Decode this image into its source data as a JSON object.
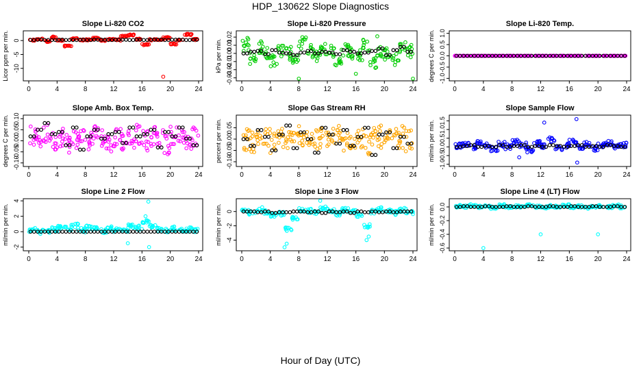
{
  "figure": {
    "title": "HDP_130622  Slope Diagnostics",
    "xlabel": "Hour of Day (UTC)"
  },
  "chart_data": [
    {
      "type": "scatter",
      "title": "Slope Li-820 CO2",
      "ylabel": "Licor ppm per min.",
      "xlim": [
        0,
        24
      ],
      "ylim": [
        -14,
        3
      ],
      "xticks": [
        0,
        4,
        8,
        12,
        16,
        20,
        24
      ],
      "yticks": [
        0,
        -5,
        -10
      ],
      "ytick_labels": [
        "0",
        "-5",
        "-10"
      ],
      "color": "#ff0000",
      "spread": 0.25,
      "series": [
        {
          "name": "all slopes",
          "color": "#ff0000",
          "values": [
            0.1,
            0.5,
            -0.3,
            1.2,
            0.0,
            -2.0,
            0.6,
            0.2,
            0.3,
            0.8,
            0.1,
            0.4,
            0.2,
            1.5,
            2.0,
            0.5,
            -1.5,
            0.3,
            0.4,
            1.0,
            -1.2,
            0.2,
            2.2,
            0.4
          ]
        },
        {
          "name": "hourly mean",
          "color": "#000000",
          "values": [
            0.2,
            0.3,
            0.2,
            0.2,
            0.3,
            0.2,
            0.2,
            0.3,
            0.2,
            0.3,
            0.3,
            0.2,
            0.3,
            0.3,
            0.2,
            0.3,
            0.2,
            0.3,
            0.3,
            0.2,
            0.3,
            0.3,
            0.2,
            0.3
          ]
        }
      ],
      "outliers": [
        {
          "x": 19.0,
          "y": -13.0
        },
        {
          "x": 23.0,
          "y": 2.3
        }
      ]
    },
    {
      "type": "scatter",
      "title": "Slope Li-820 Pressure",
      "ylabel": "kPa per min.",
      "xlim": [
        0,
        24
      ],
      "ylim": [
        -0.032,
        0.026
      ],
      "xticks": [
        0,
        4,
        8,
        12,
        16,
        20,
        24
      ],
      "yticks": [
        0.02,
        0.01,
        0.0,
        -0.01,
        -0.02,
        -0.03
      ],
      "ytick_labels": [
        "0.02",
        "0.01",
        "0.00",
        "-0.01",
        "-0.02",
        "-0.03"
      ],
      "color": "#00cc00",
      "spread": 0.008,
      "series": [
        {
          "name": "all slopes",
          "color": "#00cc00",
          "values": [
            0.01,
            -0.005,
            0.008,
            0.002,
            -0.01,
            0.004,
            0.0,
            -0.006,
            0.012,
            0.003,
            -0.004,
            0.006,
            0.002,
            -0.008,
            0.005,
            0.001,
            -0.003,
            0.01,
            -0.012,
            0.004,
            0.0,
            -0.007,
            0.009,
            0.003
          ]
        },
        {
          "name": "hourly mean",
          "color": "#000000",
          "values": [
            0.0,
            0.002,
            0.003,
            -0.001,
            0.004,
            0.001,
            0.0,
            -0.002,
            0.001,
            0.003,
            0.0,
            0.002,
            0.001,
            -0.001,
            0.004,
            0.002,
            0.0,
            0.001,
            0.003,
            0.006,
            -0.002,
            0.004,
            0.008,
            0.002
          ]
        }
      ],
      "outliers": [
        {
          "x": 8.0,
          "y": -0.031
        },
        {
          "x": 16.0,
          "y": -0.025
        },
        {
          "x": 24.0,
          "y": -0.031
        },
        {
          "x": 19.0,
          "y": 0.021
        },
        {
          "x": 0.8,
          "y": 0.019
        }
      ]
    },
    {
      "type": "scatter",
      "title": "Slope Li-820 Temp.",
      "ylabel": "degrees C per min.",
      "xlim": [
        0,
        24
      ],
      "ylim": [
        -1.05,
        1.05
      ],
      "xticks": [
        0,
        4,
        8,
        12,
        16,
        20,
        24
      ],
      "yticks": [
        1.0,
        0.5,
        0.0,
        -0.5,
        -1.0
      ],
      "ytick_labels": [
        "1.0",
        "0.5",
        "0.0",
        "-0.5",
        "-1.0"
      ],
      "color": "#ff00ff",
      "spread": 0.0,
      "series": [
        {
          "name": "all slopes",
          "color": "#ff00ff",
          "values": [
            0,
            0,
            0,
            0,
            0,
            0,
            0,
            0,
            0,
            0,
            0,
            0,
            0,
            0,
            0,
            0,
            0,
            0,
            0,
            0,
            0,
            0,
            0,
            0
          ]
        },
        {
          "name": "hourly mean",
          "color": "#000000",
          "values": [
            0,
            0,
            0,
            0,
            0,
            0,
            0,
            0,
            0,
            0,
            0,
            0,
            0,
            0,
            0,
            0,
            0,
            0,
            0,
            0,
            0,
            0,
            0,
            0
          ]
        }
      ],
      "outliers": []
    },
    {
      "type": "scatter",
      "title": "Slope Amb. Box Temp.",
      "ylabel": "degrees C per min.",
      "xlim": [
        0,
        24
      ],
      "ylim": [
        -0.11,
        0.11
      ],
      "xticks": [
        0,
        4,
        8,
        12,
        16,
        20,
        24
      ],
      "yticks": [
        0.1,
        0.05,
        0.0,
        -0.05,
        -0.1
      ],
      "ytick_labels": [
        "0.10",
        "0.05",
        "0.00",
        "-0.05",
        "-0.10"
      ],
      "color": "#ff00ff",
      "spread": 0.045,
      "series": [
        {
          "name": "all slopes",
          "color": "#ff00ff",
          "values": [
            0.02,
            0.01,
            0.03,
            0.0,
            0.02,
            -0.01,
            0.01,
            0.02,
            0.0,
            0.03,
            0.01,
            -0.01,
            0.02,
            0.0,
            0.01,
            0.03,
            0.0,
            0.02,
            0.01,
            -0.02,
            0.03,
            0.01,
            0.0,
            0.02
          ]
        },
        {
          "name": "hourly mean",
          "color": "#000000",
          "values": [
            0.02,
            0.05,
            0.08,
            0.03,
            0.04,
            -0.02,
            0.06,
            -0.04,
            0.02,
            0.05,
            0.01,
            0.03,
            0.04,
            -0.01,
            0.06,
            0.02,
            0.03,
            0.05,
            -0.03,
            0.04,
            0.02,
            0.06,
            0.01,
            -0.02
          ]
        }
      ],
      "outliers": []
    },
    {
      "type": "scatter",
      "title": "Slope Gas Stream RH",
      "ylabel": "percent per min.",
      "xlim": [
        0,
        24
      ],
      "ylim": [
        -0.115,
        0.1
      ],
      "xticks": [
        0,
        4,
        8,
        12,
        16,
        20,
        24
      ],
      "yticks": [
        0.05,
        0.0,
        -0.05,
        -0.1
      ],
      "ytick_labels": [
        "0.05",
        "0.00",
        "-0.05",
        "-0.10"
      ],
      "color": "#ffa500",
      "spread": 0.05,
      "series": [
        {
          "name": "all slopes",
          "color": "#ffa500",
          "values": [
            0.0,
            -0.01,
            0.01,
            0.0,
            -0.02,
            0.01,
            0.0,
            -0.01,
            0.02,
            0.0,
            -0.01,
            0.01,
            0.0,
            0.02,
            -0.01,
            0.0,
            0.01,
            -0.02,
            0.0,
            0.01,
            -0.01,
            0.0,
            0.01,
            -0.01
          ]
        },
        {
          "name": "hourly mean",
          "color": "#000000",
          "values": [
            0.0,
            -0.03,
            0.04,
            0.01,
            -0.05,
            0.02,
            0.06,
            -0.04,
            0.03,
            0.0,
            -0.06,
            0.05,
            0.02,
            -0.02,
            0.04,
            -0.03,
            0.01,
            0.05,
            -0.07,
            0.02,
            0.03,
            -0.04,
            0.01,
            -0.02
          ]
        }
      ],
      "outliers": []
    },
    {
      "type": "scatter",
      "title": "Slope Sample Flow",
      "ylabel": "ml/min per min.",
      "xlim": [
        0,
        24
      ],
      "ylim": [
        -1.05,
        1.75
      ],
      "xticks": [
        0,
        4,
        8,
        12,
        16,
        20,
        24
      ],
      "yticks": [
        1.5,
        1.0,
        0.5,
        0.0,
        -0.5,
        -1.0
      ],
      "ytick_labels": [
        "1.5",
        "1.0",
        "0.5",
        "0.0",
        "-0.5",
        "-1.0"
      ],
      "color": "#0000ff",
      "spread": 0.15,
      "series": [
        {
          "name": "all slopes",
          "color": "#0000ff",
          "values": [
            0.05,
            0.1,
            0.0,
            0.2,
            0.1,
            -0.1,
            0.15,
            0.0,
            0.3,
            0.1,
            -0.2,
            0.2,
            0.0,
            0.4,
            -0.1,
            0.1,
            0.3,
            0.0,
            0.2,
            -0.1,
            0.1,
            0.2,
            0.0,
            0.1
          ]
        },
        {
          "name": "hourly mean",
          "color": "#000000",
          "values": [
            0.0,
            0.05,
            0.1,
            0.0,
            0.05,
            0.0,
            0.1,
            0.0,
            0.05,
            0.1,
            0.0,
            0.05,
            0.0,
            0.1,
            0.05,
            0.0,
            0.05,
            0.1,
            0.0,
            0.05,
            0.0,
            0.1,
            0.05,
            0.0
          ]
        }
      ],
      "outliers": [
        {
          "x": 12.5,
          "y": 1.4
        },
        {
          "x": 17.0,
          "y": 1.6
        },
        {
          "x": 17.1,
          "y": -0.9
        },
        {
          "x": 9.0,
          "y": -0.6
        }
      ]
    },
    {
      "type": "scatter",
      "title": "Slope Line 2 Flow",
      "ylabel": "ml/min per min.",
      "xlim": [
        0,
        24
      ],
      "ylim": [
        -2.3,
        4.1
      ],
      "xticks": [
        0,
        4,
        8,
        12,
        16,
        20,
        24
      ],
      "yticks": [
        4,
        2,
        0,
        -2
      ],
      "ytick_labels": [
        "4",
        "2",
        "0",
        "-2"
      ],
      "color": "#00ffff",
      "spread": 0.3,
      "series": [
        {
          "name": "all slopes",
          "color": "#00ffff",
          "values": [
            0.2,
            0.0,
            0.1,
            0.3,
            0.6,
            0.4,
            0.8,
            0.2,
            0.5,
            0.3,
            0.1,
            0.4,
            0.2,
            0.3,
            0.8,
            0.5,
            1.2,
            0.6,
            0.3,
            0.2,
            0.4,
            0.1,
            0.3,
            0.2
          ]
        },
        {
          "name": "hourly mean",
          "color": "#000000",
          "values": [
            0,
            0,
            0,
            0,
            0,
            0,
            0,
            0,
            0,
            0,
            0,
            0,
            0,
            0,
            0,
            0,
            0,
            0,
            0,
            0,
            0,
            0,
            0,
            0
          ]
        }
      ],
      "outliers": [
        {
          "x": 16.9,
          "y": 3.9
        },
        {
          "x": 17.0,
          "y": -2.0
        },
        {
          "x": 14.0,
          "y": -1.5
        },
        {
          "x": 16.5,
          "y": 2.0
        }
      ]
    },
    {
      "type": "scatter",
      "title": "Slope Line 3 Flow",
      "ylabel": "ml/min per min.",
      "xlim": [
        0,
        24
      ],
      "ylim": [
        -5.3,
        1.6
      ],
      "xticks": [
        0,
        4,
        8,
        12,
        16,
        20,
        24
      ],
      "yticks": [
        0,
        -2,
        -4
      ],
      "ytick_labels": [
        "0",
        "-2",
        "-4"
      ],
      "color": "#00ffff",
      "spread": 0.3,
      "series": [
        {
          "name": "all slopes",
          "color": "#00ffff",
          "values": [
            0.0,
            -0.2,
            0.3,
            -0.1,
            -0.5,
            -0.3,
            -2.5,
            -1.0,
            0.2,
            0.1,
            -0.2,
            0.5,
            0.1,
            -0.3,
            0.2,
            0.0,
            -0.5,
            -2.0,
            0.0,
            0.3,
            0.1,
            -0.2,
            0.2,
            -0.1
          ]
        },
        {
          "name": "hourly mean",
          "color": "#000000",
          "values": [
            0.0,
            0.0,
            -0.1,
            0.0,
            -0.2,
            -0.1,
            -0.1,
            0.0,
            0.0,
            -0.1,
            0.0,
            -0.2,
            0.0,
            -0.1,
            0.0,
            -0.2,
            0.0,
            -0.1,
            0.0,
            -0.1,
            0.0,
            -0.1,
            0.0,
            0.0
          ]
        }
      ],
      "outliers": [
        {
          "x": 6.0,
          "y": -5.0
        },
        {
          "x": 6.3,
          "y": -4.5
        },
        {
          "x": 17.5,
          "y": -4.0
        },
        {
          "x": 17.8,
          "y": -3.5
        },
        {
          "x": 11.0,
          "y": 1.5
        }
      ]
    },
    {
      "type": "scatter",
      "title": "Slope Line 4 (LT) Flow",
      "ylabel": "ml/min per min.",
      "xlim": [
        0,
        24
      ],
      "ylim": [
        -0.62,
        0.1
      ],
      "xticks": [
        0,
        4,
        8,
        12,
        16,
        20,
        24
      ],
      "yticks": [
        0.0,
        -0.2,
        -0.4,
        -0.6
      ],
      "ytick_labels": [
        "0.0",
        "-0.2",
        "-0.4",
        "-0.6"
      ],
      "color": "#00ffff",
      "spread": 0.02,
      "series": [
        {
          "name": "all slopes",
          "color": "#00ffff",
          "values": [
            0.01,
            0.0,
            0.02,
            0.0,
            0.01,
            -0.01,
            0.02,
            0.0,
            0.01,
            0.0,
            0.02,
            0.0,
            -0.01,
            0.01,
            0.0,
            0.02,
            0.0,
            0.01,
            -0.01,
            0.0,
            0.01,
            0.0,
            0.02,
            0.0
          ]
        },
        {
          "name": "hourly mean",
          "color": "#000000",
          "values": [
            0.0,
            0.01,
            0.0,
            0.0,
            0.01,
            0.0,
            0.0,
            0.01,
            0.0,
            0.0,
            0.01,
            0.0,
            0.0,
            0.01,
            0.0,
            0.0,
            0.01,
            0.0,
            0.0,
            0.01,
            0.0,
            0.0,
            0.01,
            0.0
          ]
        }
      ],
      "outliers": [
        {
          "x": 4.0,
          "y": -0.6
        },
        {
          "x": 12.0,
          "y": -0.4
        },
        {
          "x": 20.0,
          "y": -0.4
        }
      ]
    }
  ]
}
